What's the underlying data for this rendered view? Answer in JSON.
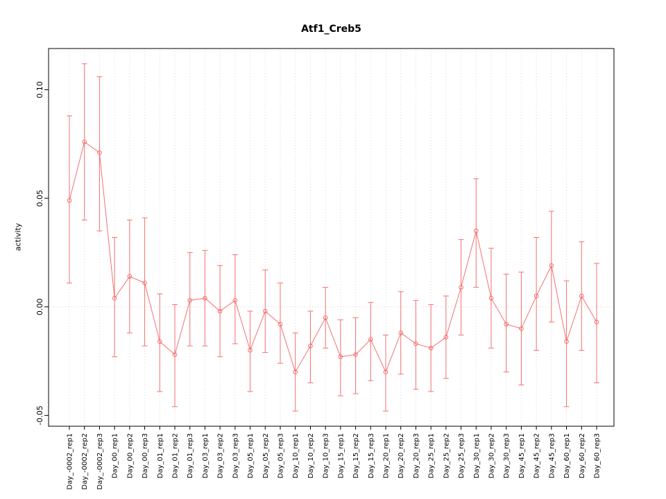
{
  "style": {
    "background": "#ffffff",
    "series_color": "#f47070",
    "grid_color": "#d9d9d9",
    "zero_line_color": "#f0c6c6",
    "box_color": "#000000",
    "text_color": "#000000"
  },
  "chart_data": {
    "type": "line",
    "title": "Atf1_Creb5",
    "xlabel": "",
    "ylabel": "activity",
    "ylim": [
      -0.055,
      0.119
    ],
    "yticks": [
      -0.05,
      0.0,
      0.05,
      0.1
    ],
    "ytick_labels": [
      "-0.05",
      "0.00",
      "0.05",
      "0.10"
    ],
    "grid": "vertical-dotted",
    "zero_line": true,
    "legend": "none",
    "categories": [
      "Day_-0002_rep1",
      "Day_-0002_rep2",
      "Day_-0002_rep3",
      "Day_00_rep1",
      "Day_00_rep2",
      "Day_00_rep3",
      "Day_01_rep1",
      "Day_01_rep2",
      "Day_01_rep3",
      "Day_03_rep1",
      "Day_03_rep2",
      "Day_03_rep3",
      "Day_05_rep1",
      "Day_05_rep2",
      "Day_05_rep3",
      "Day_10_rep1",
      "Day_10_rep2",
      "Day_10_rep3",
      "Day_15_rep1",
      "Day_15_rep2",
      "Day_15_rep3",
      "Day_20_rep1",
      "Day_20_rep2",
      "Day_20_rep3",
      "Day_25_rep1",
      "Day_25_rep2",
      "Day_25_rep3",
      "Day_30_rep1",
      "Day_30_rep2",
      "Day_30_rep3",
      "Day_45_rep1",
      "Day_45_rep2",
      "Day_45_rep3",
      "Day_60_rep1",
      "Day_60_rep2",
      "Day_60_rep3"
    ],
    "series": [
      {
        "name": "activity",
        "marker": "open-circle",
        "values": [
          0.049,
          0.076,
          0.071,
          0.004,
          0.014,
          0.011,
          -0.016,
          -0.022,
          0.003,
          0.004,
          -0.002,
          0.003,
          -0.02,
          -0.002,
          -0.008,
          -0.03,
          -0.018,
          -0.005,
          -0.023,
          -0.022,
          -0.015,
          -0.03,
          -0.012,
          -0.017,
          -0.019,
          -0.014,
          0.009,
          0.035,
          0.004,
          -0.008,
          -0.01,
          0.005,
          0.019,
          -0.016,
          0.005,
          -0.007
        ],
        "error_low": [
          0.011,
          0.04,
          0.035,
          -0.023,
          -0.012,
          -0.018,
          -0.039,
          -0.046,
          -0.018,
          -0.018,
          -0.023,
          -0.017,
          -0.039,
          -0.021,
          -0.026,
          -0.048,
          -0.035,
          -0.019,
          -0.041,
          -0.04,
          -0.034,
          -0.048,
          -0.031,
          -0.038,
          -0.039,
          -0.033,
          -0.013,
          0.009,
          -0.019,
          -0.03,
          -0.036,
          -0.02,
          -0.007,
          -0.046,
          -0.02,
          -0.035
        ],
        "error_high": [
          0.088,
          0.112,
          0.106,
          0.032,
          0.04,
          0.041,
          0.006,
          0.001,
          0.025,
          0.026,
          0.019,
          0.024,
          -0.002,
          0.017,
          0.011,
          -0.012,
          -0.002,
          0.009,
          -0.006,
          -0.005,
          0.002,
          -0.013,
          0.007,
          0.003,
          0.001,
          0.005,
          0.031,
          0.059,
          0.027,
          0.015,
          0.016,
          0.032,
          0.044,
          0.012,
          0.03,
          0.02
        ]
      }
    ]
  }
}
